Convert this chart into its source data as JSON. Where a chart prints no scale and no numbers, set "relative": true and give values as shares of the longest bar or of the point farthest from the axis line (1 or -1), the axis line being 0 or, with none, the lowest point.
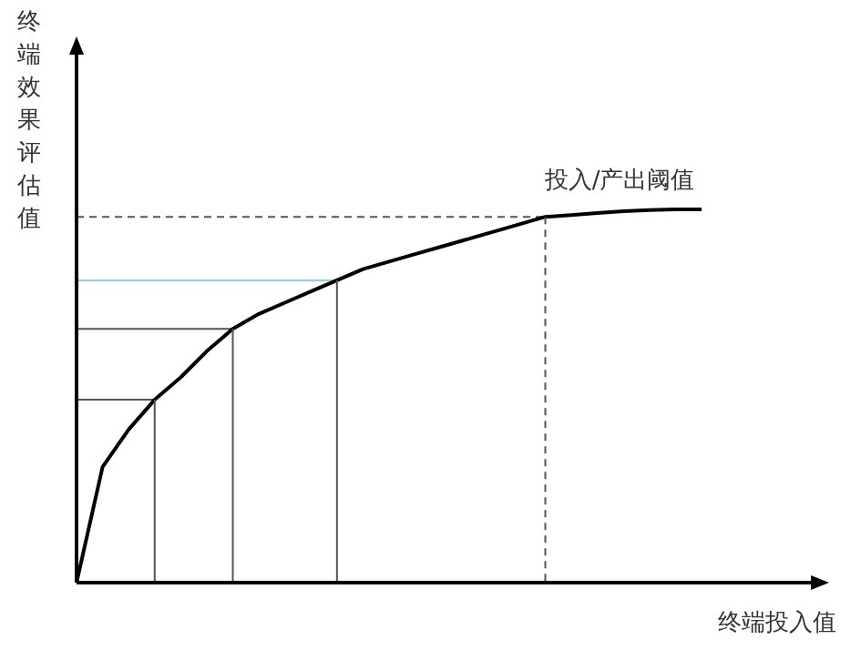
{
  "chart_data": {
    "type": "line",
    "relative": true,
    "xlabel": "终端投入值",
    "ylabel": "终端效果评估值",
    "marker": "none",
    "line_style": "solid",
    "annotations": [
      "投入/产出阈值"
    ],
    "categories": [
      null,
      null,
      null,
      null,
      null,
      null,
      null,
      null,
      null,
      null,
      null,
      null,
      null,
      null,
      null,
      null,
      null,
      null,
      null,
      null,
      null,
      null,
      null,
      null,
      null
    ],
    "series": [
      {
        "color": "#000000",
        "values": [
          0,
          0.31,
          0.41,
          0.49,
          0.55,
          0.62,
          0.68,
          0.72,
          0.75,
          0.78,
          0.81,
          0.84,
          0.86,
          0.88,
          0.9,
          0.92,
          0.94,
          0.96,
          0.98,
          0.985,
          0.99,
          0.995,
          0.998,
          1,
          1
        ]
      },
      {
        "color": "#555555",
        "values": [
          0.49,
          0.49,
          0.49,
          0.49,
          null,
          null,
          null,
          null,
          null,
          null,
          null,
          null,
          null,
          null,
          null,
          null,
          null,
          null,
          null,
          null,
          null,
          null,
          null,
          null,
          null
        ]
      },
      {
        "color": "#555555",
        "values": [
          0.68,
          0.68,
          0.68,
          0.68,
          0.68,
          0.68,
          0.68,
          null,
          null,
          null,
          null,
          null,
          null,
          null,
          null,
          null,
          null,
          null,
          null,
          null,
          null,
          null,
          null,
          null,
          null
        ]
      },
      {
        "color": "#8fd3e0",
        "values": [
          0.81,
          0.81,
          0.81,
          0.81,
          0.81,
          0.81,
          0.81,
          0.81,
          0.81,
          0.81,
          0.81,
          null,
          null,
          null,
          null,
          null,
          null,
          null,
          null,
          null,
          null,
          null,
          null,
          null,
          null
        ]
      },
      {
        "color": "#555555",
        "line_style": "dashed",
        "values": [
          0.98,
          0.98,
          0.98,
          0.98,
          0.98,
          0.98,
          0.98,
          0.98,
          0.98,
          0.98,
          0.98,
          0.98,
          0.98,
          0.98,
          0.98,
          0.98,
          0.98,
          0.98,
          0.98,
          null,
          null,
          null,
          null,
          null,
          null
        ]
      }
    ]
  }
}
